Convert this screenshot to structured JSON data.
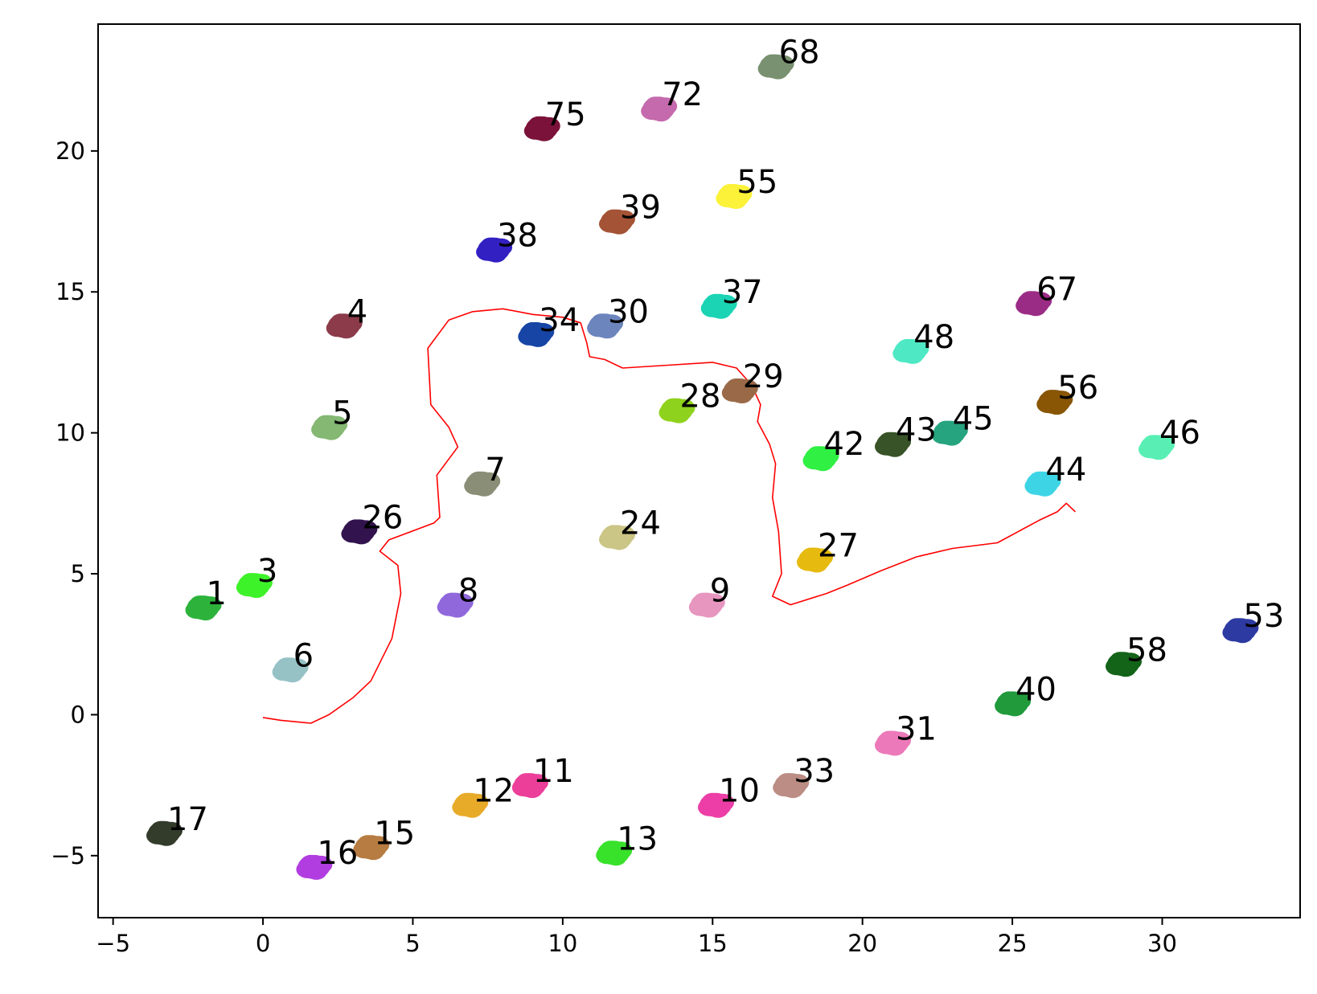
{
  "chart_data": {
    "type": "scatter",
    "title": "",
    "xlabel": "",
    "ylabel": "",
    "xlim": [
      -5.5,
      34.6
    ],
    "ylim": [
      -7.2,
      24.5
    ],
    "xticks": [
      -5,
      0,
      5,
      10,
      15,
      20,
      25,
      30
    ],
    "xtick_labels": [
      "−5",
      "0",
      "5",
      "10",
      "15",
      "20",
      "25",
      "30"
    ],
    "yticks": [
      -5,
      0,
      5,
      10,
      15,
      20
    ],
    "ytick_labels": [
      "−5",
      "0",
      "5",
      "10",
      "15",
      "20"
    ],
    "grid": false,
    "legend": "none",
    "clusters": [
      {
        "label": "1",
        "x": -2.0,
        "y": 3.8,
        "color": "#2db33c"
      },
      {
        "label": "3",
        "x": -0.3,
        "y": 4.6,
        "color": "#3ef22a"
      },
      {
        "label": "4",
        "x": 2.7,
        "y": 13.8,
        "color": "#8b3b4a"
      },
      {
        "label": "5",
        "x": 2.2,
        "y": 10.2,
        "color": "#84b873"
      },
      {
        "label": "6",
        "x": 0.9,
        "y": 1.6,
        "color": "#96c2c6"
      },
      {
        "label": "7",
        "x": 7.3,
        "y": 8.2,
        "color": "#8a8e76"
      },
      {
        "label": "8",
        "x": 6.4,
        "y": 3.9,
        "color": "#9068dc"
      },
      {
        "label": "9",
        "x": 14.8,
        "y": 3.9,
        "color": "#e796c0"
      },
      {
        "label": "10",
        "x": 15.1,
        "y": -3.2,
        "color": "#ec3ea6"
      },
      {
        "label": "11",
        "x": 8.9,
        "y": -2.5,
        "color": "#ec3f9a"
      },
      {
        "label": "12",
        "x": 6.9,
        "y": -3.2,
        "color": "#e8ab29"
      },
      {
        "label": "13",
        "x": 11.7,
        "y": -4.9,
        "color": "#38e12a"
      },
      {
        "label": "15",
        "x": 3.6,
        "y": -4.7,
        "color": "#b77c41"
      },
      {
        "label": "16",
        "x": 1.7,
        "y": -5.4,
        "color": "#b13de0"
      },
      {
        "label": "17",
        "x": -3.3,
        "y": -4.2,
        "color": "#333c2b"
      },
      {
        "label": "24",
        "x": 11.8,
        "y": 6.3,
        "color": "#cbc586"
      },
      {
        "label": "26",
        "x": 3.2,
        "y": 6.5,
        "color": "#32134e"
      },
      {
        "label": "27",
        "x": 18.4,
        "y": 5.5,
        "color": "#e6ba0f"
      },
      {
        "label": "28",
        "x": 13.8,
        "y": 10.8,
        "color": "#8fd21d"
      },
      {
        "label": "29",
        "x": 15.9,
        "y": 11.5,
        "color": "#9a6a48"
      },
      {
        "label": "30",
        "x": 11.4,
        "y": 13.8,
        "color": "#6d85bd"
      },
      {
        "label": "31",
        "x": 21.0,
        "y": -1.0,
        "color": "#ec79b9"
      },
      {
        "label": "33",
        "x": 17.6,
        "y": -2.5,
        "color": "#bb8d84"
      },
      {
        "label": "34",
        "x": 9.1,
        "y": 13.5,
        "color": "#1745a5"
      },
      {
        "label": "37",
        "x": 15.2,
        "y": 14.5,
        "color": "#1bd4b4"
      },
      {
        "label": "38",
        "x": 7.7,
        "y": 16.5,
        "color": "#3220c3"
      },
      {
        "label": "39",
        "x": 11.8,
        "y": 17.5,
        "color": "#a55336"
      },
      {
        "label": "40",
        "x": 25.0,
        "y": 0.4,
        "color": "#219a3c"
      },
      {
        "label": "42",
        "x": 18.6,
        "y": 9.1,
        "color": "#2ff043"
      },
      {
        "label": "43",
        "x": 21.0,
        "y": 9.6,
        "color": "#385327"
      },
      {
        "label": "44",
        "x": 26.0,
        "y": 8.2,
        "color": "#3dd5e6"
      },
      {
        "label": "45",
        "x": 22.9,
        "y": 10.0,
        "color": "#26a37f"
      },
      {
        "label": "46",
        "x": 29.8,
        "y": 9.5,
        "color": "#59efb4"
      },
      {
        "label": "48",
        "x": 21.6,
        "y": 12.9,
        "color": "#4ee8c4"
      },
      {
        "label": "53",
        "x": 32.6,
        "y": 3.0,
        "color": "#2d3aa2"
      },
      {
        "label": "55",
        "x": 15.7,
        "y": 18.4,
        "color": "#fbf239"
      },
      {
        "label": "56",
        "x": 26.4,
        "y": 11.1,
        "color": "#885605"
      },
      {
        "label": "58",
        "x": 28.7,
        "y": 1.8,
        "color": "#136318"
      },
      {
        "label": "67",
        "x": 25.7,
        "y": 14.6,
        "color": "#9b2c86"
      },
      {
        "label": "68",
        "x": 17.1,
        "y": 23.0,
        "color": "#799170"
      },
      {
        "label": "72",
        "x": 13.2,
        "y": 21.5,
        "color": "#c46aad"
      },
      {
        "label": "75",
        "x": 9.3,
        "y": 20.8,
        "color": "#7b1239"
      }
    ],
    "trajectory": {
      "color": "#ff0000",
      "points": [
        [
          0,
          -0.1
        ],
        [
          0.6,
          -0.2
        ],
        [
          1.6,
          -0.3
        ],
        [
          2.2,
          0
        ],
        [
          3,
          0.6
        ],
        [
          3.6,
          1.2
        ],
        [
          4.3,
          2.7
        ],
        [
          4.6,
          4.3
        ],
        [
          4.5,
          5.3
        ],
        [
          3.9,
          5.8
        ],
        [
          4.2,
          6.2
        ],
        [
          5.7,
          6.8
        ],
        [
          5.9,
          7
        ],
        [
          5.8,
          8.5
        ],
        [
          6.5,
          9.5
        ],
        [
          6.2,
          10.2
        ],
        [
          5.6,
          11
        ],
        [
          5.5,
          13
        ],
        [
          6.2,
          14
        ],
        [
          7,
          14.3
        ],
        [
          8,
          14.4
        ],
        [
          9,
          14.2
        ],
        [
          10,
          14.1
        ],
        [
          10.6,
          13.9
        ],
        [
          10.8,
          13.2
        ],
        [
          10.9,
          12.7
        ],
        [
          11.4,
          12.6
        ],
        [
          12,
          12.3
        ],
        [
          13.5,
          12.4
        ],
        [
          15,
          12.5
        ],
        [
          15.8,
          12.3
        ],
        [
          16.3,
          11.7
        ],
        [
          16.6,
          11
        ],
        [
          16.5,
          10.4
        ],
        [
          16.9,
          9.6
        ],
        [
          17.1,
          8.9
        ],
        [
          17.0,
          7.7
        ],
        [
          17.2,
          6.5
        ],
        [
          17.3,
          5
        ],
        [
          17.0,
          4.2
        ],
        [
          17.6,
          3.9
        ],
        [
          18.8,
          4.3
        ],
        [
          19.5,
          4.6
        ],
        [
          20.6,
          5.1
        ],
        [
          21.8,
          5.6
        ],
        [
          23.0,
          5.9
        ],
        [
          24.5,
          6.1
        ],
        [
          25.2,
          6.5
        ],
        [
          25.9,
          6.9
        ],
        [
          26.5,
          7.2
        ],
        [
          26.8,
          7.5
        ],
        [
          27.1,
          7.2
        ]
      ]
    }
  }
}
